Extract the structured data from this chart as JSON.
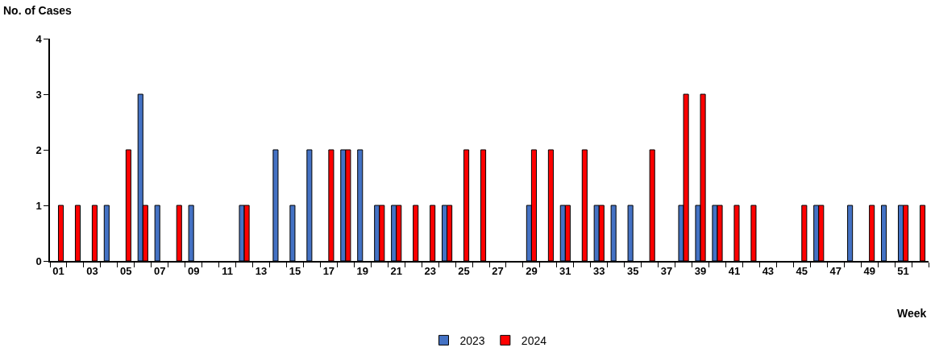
{
  "chart_data": {
    "type": "bar",
    "xlabel": "Week",
    "ylabel": "No. of Cases",
    "categories": [
      "01",
      null,
      "03",
      null,
      "05",
      null,
      "07",
      null,
      "09",
      null,
      "11",
      null,
      "13",
      null,
      "15",
      null,
      "17",
      null,
      "19",
      null,
      "21",
      null,
      "23",
      null,
      "25",
      null,
      "27",
      null,
      "29",
      null,
      "31",
      null,
      "33",
      null,
      "35",
      null,
      "37",
      null,
      "39",
      null,
      "41",
      null,
      "43",
      null,
      "45",
      null,
      "47",
      null,
      "49",
      null,
      "51",
      null
    ],
    "series": [
      {
        "name": "2023",
        "color": "#4472c4",
        "values": [
          null,
          null,
          null,
          1,
          null,
          3,
          1,
          null,
          1,
          null,
          null,
          1,
          null,
          2,
          1,
          2,
          null,
          2,
          2,
          1,
          1,
          null,
          null,
          1,
          null,
          null,
          null,
          null,
          1,
          null,
          1,
          null,
          1,
          1,
          1,
          null,
          null,
          1,
          1,
          1,
          null,
          null,
          null,
          null,
          null,
          1,
          null,
          1,
          null,
          1,
          1,
          null
        ]
      },
      {
        "name": "2024",
        "color": "#ff0000",
        "values": [
          1,
          1,
          1,
          null,
          2,
          1,
          null,
          1,
          null,
          null,
          null,
          1,
          null,
          null,
          null,
          null,
          2,
          2,
          null,
          1,
          1,
          1,
          1,
          1,
          2,
          2,
          null,
          null,
          2,
          2,
          1,
          2,
          1,
          null,
          null,
          2,
          null,
          3,
          3,
          1,
          1,
          1,
          null,
          null,
          1,
          1,
          null,
          null,
          1,
          null,
          1,
          1
        ]
      }
    ],
    "ylim": [
      0,
      4
    ],
    "yticks": [
      0,
      1,
      2,
      3,
      4
    ],
    "legend": "bottom"
  }
}
